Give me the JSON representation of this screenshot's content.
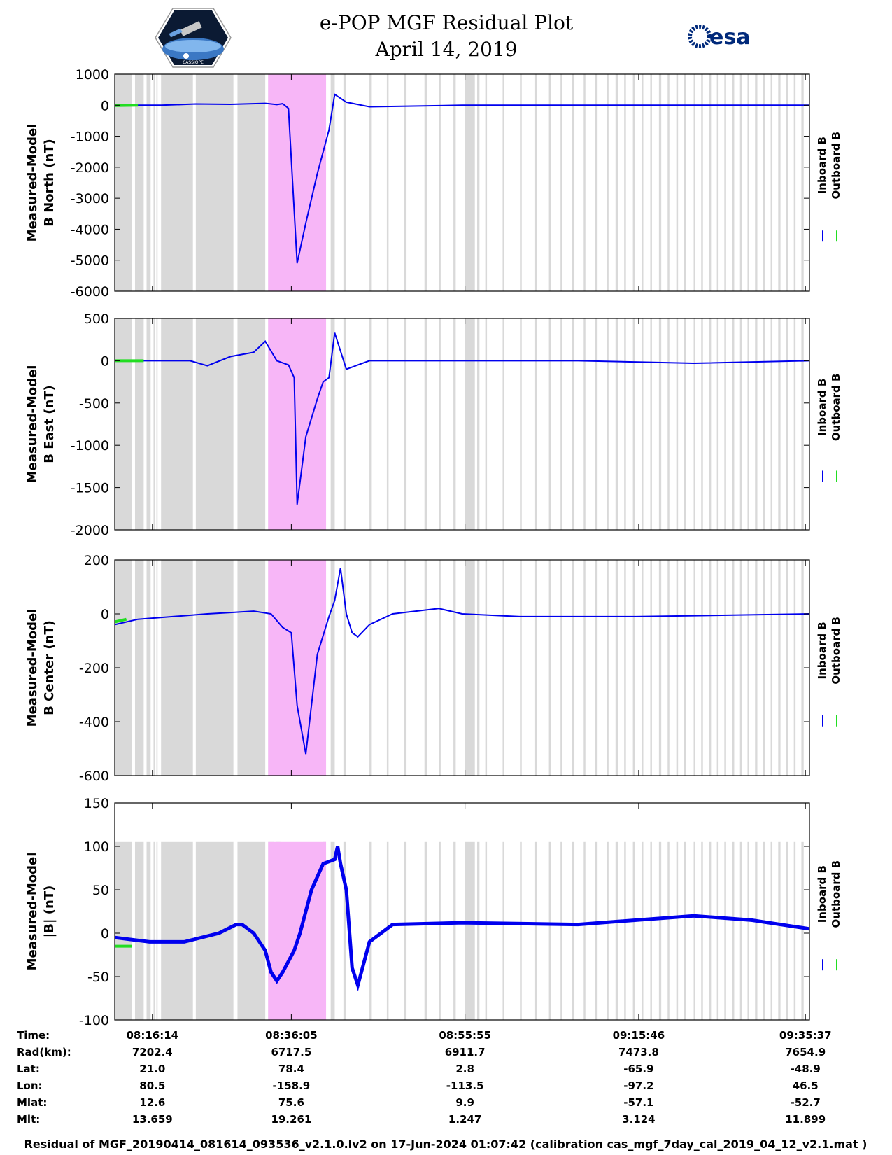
{
  "header": {
    "title_line1": "e-POP MGF Residual Plot",
    "title_line2": "April 14, 2019",
    "logo_left_text": "CASSIOPE",
    "logo_right_text": "esa"
  },
  "legend": {
    "inboard": "Inboard B",
    "outboard": "Outboard B"
  },
  "colors": {
    "inboard": "#0000ee",
    "outboard": "#22dd22",
    "gap": "#d9d9d9",
    "event": "#f7b6f7"
  },
  "x_ticks": [
    "08:16:14",
    "08:36:05",
    "08:55:55",
    "09:15:46",
    "09:35:37"
  ],
  "ephemeris": [
    {
      "label": "Time:",
      "values": [
        "08:16:14",
        "08:36:05",
        "08:55:55",
        "09:15:46",
        "09:35:37"
      ]
    },
    {
      "label": "Rad(km):",
      "values": [
        "7202.4",
        "6717.5",
        "6911.7",
        "7473.8",
        "7654.9"
      ]
    },
    {
      "label": "Lat:",
      "values": [
        "21.0",
        "78.4",
        "2.8",
        "-65.9",
        "-48.9"
      ]
    },
    {
      "label": "Lon:",
      "values": [
        "80.5",
        "-158.9",
        "-113.5",
        "-97.2",
        "46.5"
      ]
    },
    {
      "label": "Mlat:",
      "values": [
        "12.6",
        "75.6",
        "9.9",
        "-57.1",
        "-52.7"
      ]
    },
    {
      "label": "Mlt:",
      "values": [
        "13.659",
        "19.261",
        "1.247",
        "3.124",
        "11.899"
      ]
    }
  ],
  "footer": "Residual of MGF_20190414_081614_093536_v2.1.0.lv2 on 17-Jun-2024 01:07:42 (calibration cas_mgf_7day_cal_2019_04_12_v2.1.mat )",
  "chart_data": [
    {
      "type": "line",
      "ylabel_1": "Measured-Model",
      "ylabel_2": "B North (nT)",
      "ylim": [
        -6000,
        1000
      ],
      "yticks": [
        "1000",
        "0",
        "-1000",
        "-2000",
        "-3000",
        "-4000",
        "-5000",
        "-6000"
      ],
      "series": [
        {
          "name": "Inboard B",
          "x": [
            0,
            8,
            14,
            20,
            26,
            28,
            29,
            30,
            31.5,
            33,
            35,
            36,
            37,
            38,
            40,
            44,
            60,
            120
          ],
          "y": [
            0,
            0,
            40,
            30,
            60,
            20,
            50,
            -100,
            -5100,
            -3800,
            -2200,
            -1500,
            -800,
            350,
            100,
            -50,
            0,
            0
          ]
        },
        {
          "name": "Outboard B",
          "x": [
            0,
            4
          ],
          "y": [
            -10,
            0
          ]
        }
      ]
    },
    {
      "type": "line",
      "ylabel_1": "Measured-Model",
      "ylabel_2": "B East (nT)",
      "ylim": [
        -2000,
        500
      ],
      "yticks": [
        "500",
        "0",
        "-500",
        "-1000",
        "-1500",
        "-2000"
      ],
      "series": [
        {
          "name": "Inboard B",
          "x": [
            0,
            6,
            13,
            16,
            20,
            24,
            26,
            28,
            30,
            31,
            31.5,
            33,
            35,
            36,
            37,
            38,
            40,
            44,
            80,
            100,
            120
          ],
          "y": [
            0,
            0,
            0,
            -60,
            50,
            100,
            230,
            0,
            -50,
            -200,
            -1700,
            -900,
            -450,
            -250,
            -200,
            330,
            -100,
            0,
            0,
            -30,
            0
          ]
        },
        {
          "name": "Outboard B",
          "x": [
            0,
            5
          ],
          "y": [
            0,
            0
          ]
        }
      ]
    },
    {
      "type": "line",
      "ylabel_1": "Measured-Model",
      "ylabel_2": "B Center (nT)",
      "ylim": [
        -600,
        200
      ],
      "yticks": [
        "200",
        "0",
        "-200",
        "-400",
        "-600"
      ],
      "series": [
        {
          "name": "Inboard B",
          "x": [
            0,
            4,
            10,
            16,
            20,
            24,
            27,
            29,
            30.5,
            31.5,
            33,
            35,
            37,
            38,
            39,
            40,
            41,
            42,
            44,
            48,
            56,
            60,
            70,
            90,
            120
          ],
          "y": [
            -40,
            -20,
            -10,
            0,
            5,
            10,
            0,
            -50,
            -70,
            -340,
            -520,
            -150,
            -10,
            50,
            170,
            0,
            -70,
            -85,
            -40,
            0,
            20,
            0,
            -10,
            -10,
            0
          ]
        },
        {
          "name": "Outboard B",
          "x": [
            0,
            2
          ],
          "y": [
            -30,
            -20
          ]
        }
      ]
    },
    {
      "type": "line",
      "ylabel_1": "Measured-Model",
      "ylabel_2": "|B| (nT)",
      "ylim": [
        -100,
        150
      ],
      "yticks": [
        "150",
        "100",
        "50",
        "0",
        "-50",
        "-100"
      ],
      "series": [
        {
          "name": "Inboard B",
          "x": [
            0,
            6,
            12,
            18,
            21,
            22,
            24,
            26,
            27,
            28,
            29,
            31,
            32,
            34,
            36,
            38,
            38.5,
            39,
            40,
            41,
            42,
            44,
            48,
            60,
            80,
            100,
            110,
            120
          ],
          "y": [
            -5,
            -10,
            -10,
            0,
            10,
            10,
            0,
            -20,
            -45,
            -55,
            -45,
            -20,
            0,
            50,
            80,
            85,
            100,
            80,
            50,
            -40,
            -60,
            -10,
            10,
            12,
            10,
            20,
            15,
            5
          ]
        },
        {
          "name": "Outboard B",
          "x": [
            0,
            3
          ],
          "y": [
            -15,
            -15
          ]
        }
      ]
    }
  ]
}
